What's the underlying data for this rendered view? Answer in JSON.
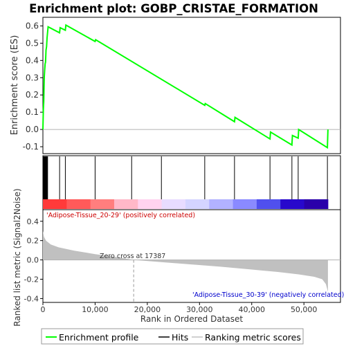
{
  "chart_data": {
    "type": "line",
    "title": "Enrichment plot: GOBP_CRISTAE_FORMATION",
    "top_panel": {
      "ylabel": "Enrichment score (ES)",
      "ylim": [
        -0.14,
        0.65
      ],
      "yticks": [
        -0.1,
        0.0,
        0.1,
        0.2,
        0.3,
        0.4,
        0.5,
        0.6
      ],
      "ytick_labels": [
        "-0.1",
        "0.0",
        "0.1",
        "0.2",
        "0.3",
        "0.4",
        "0.5",
        "0.6"
      ],
      "series": [
        {
          "name": "Enrichment profile",
          "color": "#00ff00",
          "x": [
            0,
            80,
            160,
            250,
            330,
            420,
            500,
            600,
            700,
            800,
            1000,
            3200,
            3300,
            4300,
            4400,
            10000,
            10100,
            31000,
            31100,
            36700,
            36800,
            43500,
            43600,
            47700,
            47800,
            48900,
            49000,
            54500,
            54600
          ],
          "y": [
            0.0,
            0.11,
            0.16,
            0.3,
            0.34,
            0.38,
            0.39,
            0.46,
            0.48,
            0.53,
            0.595,
            0.56,
            0.59,
            0.575,
            0.605,
            0.51,
            0.52,
            0.14,
            0.15,
            0.045,
            0.07,
            -0.055,
            -0.015,
            -0.09,
            -0.035,
            -0.05,
            0.0,
            -0.105,
            0.0
          ]
        }
      ]
    },
    "hits_panel": {
      "name": "Hits",
      "hit_ranks": [
        50,
        120,
        200,
        280,
        350,
        430,
        520,
        610,
        700,
        790,
        900,
        3200,
        4300,
        10000,
        17000,
        22700,
        31000,
        36700,
        43500,
        47700,
        48900,
        54500
      ]
    },
    "ranking_panel": {
      "ylabel": "Ranked list metric (Signal2Noise)",
      "xlabel": "Rank in Ordered Dataset",
      "ylim": [
        -0.44,
        0.52
      ],
      "yticks": [
        -0.4,
        -0.2,
        0.0,
        0.2,
        0.4
      ],
      "ytick_labels": [
        "-0.4",
        "-0.2",
        "0.0",
        "0.2",
        "0.4"
      ],
      "xlim": [
        0,
        57000
      ],
      "xticks": [
        0,
        10000,
        20000,
        30000,
        40000,
        50000
      ],
      "xtick_labels": [
        "0",
        "10,000",
        "20,000",
        "30,000",
        "40,000",
        "50,000"
      ],
      "zero_cross_rank": 17387,
      "series": [
        {
          "name": "Ranking metric scores",
          "color": "#c0c0c0",
          "x": [
            0,
            200,
            600,
            1500,
            3000,
            6000,
            10000,
            14000,
            17387,
            22000,
            28000,
            34000,
            40000,
            45000,
            49000,
            52000,
            53500,
            54200,
            54600
          ],
          "y": [
            0.3,
            0.24,
            0.2,
            0.16,
            0.13,
            0.095,
            0.06,
            0.03,
            0.0,
            -0.02,
            -0.045,
            -0.07,
            -0.1,
            -0.125,
            -0.15,
            -0.175,
            -0.2,
            -0.25,
            -0.33
          ]
        }
      ],
      "annotations": {
        "zero_cross": "Zero cross at 17387",
        "positive": "'Adipose-Tissue_20-29' (positively correlated)",
        "negative": "'Adipose-Tissue_30-39' (negatively correlated)"
      }
    },
    "legend": {
      "placement": "bottom",
      "entries": [
        {
          "label": "Enrichment profile",
          "color": "#00ff00"
        },
        {
          "label": "Hits",
          "color": "#000000"
        },
        {
          "label": "Ranking metric scores",
          "color": "#c0c0c0"
        }
      ]
    },
    "grid": false
  },
  "colors": {
    "enrichment_line": "#00ff00",
    "hits": "#000000",
    "zero_line": "#b0b0b0",
    "positive_label": "#cc0000",
    "negative_label": "#0000cc",
    "heat_segments": [
      "#ff3a3a",
      "#ff5a5a",
      "#ff7e7e",
      "#ffb8c8",
      "#ffd3ef",
      "#e8dcff",
      "#d4d4ff",
      "#b2b2ff",
      "#8a8aff",
      "#5050ee",
      "#2808cc",
      "#2a00aa"
    ]
  }
}
